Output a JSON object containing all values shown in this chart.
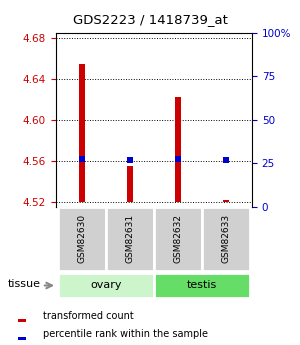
{
  "title": "GDS2223 / 1418739_at",
  "samples": [
    "GSM82630",
    "GSM82631",
    "GSM82632",
    "GSM82633"
  ],
  "tissue_groups": [
    {
      "label": "ovary",
      "samples": [
        0,
        1
      ],
      "color": "#ccf5cc"
    },
    {
      "label": "testis",
      "samples": [
        2,
        3
      ],
      "color": "#66dd66"
    }
  ],
  "bar_baseline": 4.52,
  "bar_tops": [
    4.655,
    4.555,
    4.622,
    4.522
  ],
  "percentile_values": [
    4.562,
    4.561,
    4.562,
    4.561
  ],
  "ylim_left": [
    4.515,
    4.685
  ],
  "ylim_right": [
    0,
    100
  ],
  "yticks_left": [
    4.52,
    4.56,
    4.6,
    4.64,
    4.68
  ],
  "yticks_right": [
    0,
    25,
    50,
    75,
    100
  ],
  "ytick_labels_right": [
    "0",
    "25",
    "50",
    "75",
    "100%"
  ],
  "bar_color": "#cc0000",
  "percentile_color": "#0000cc",
  "left_axis_color": "#cc0000",
  "right_axis_color": "#0000cc",
  "bar_width": 0.12,
  "legend_red": "transformed count",
  "legend_blue": "percentile rank within the sample",
  "tissue_label": "tissue",
  "sample_box_color": "#d0d0d0",
  "fig_width": 3.0,
  "fig_height": 3.45,
  "dpi": 100
}
